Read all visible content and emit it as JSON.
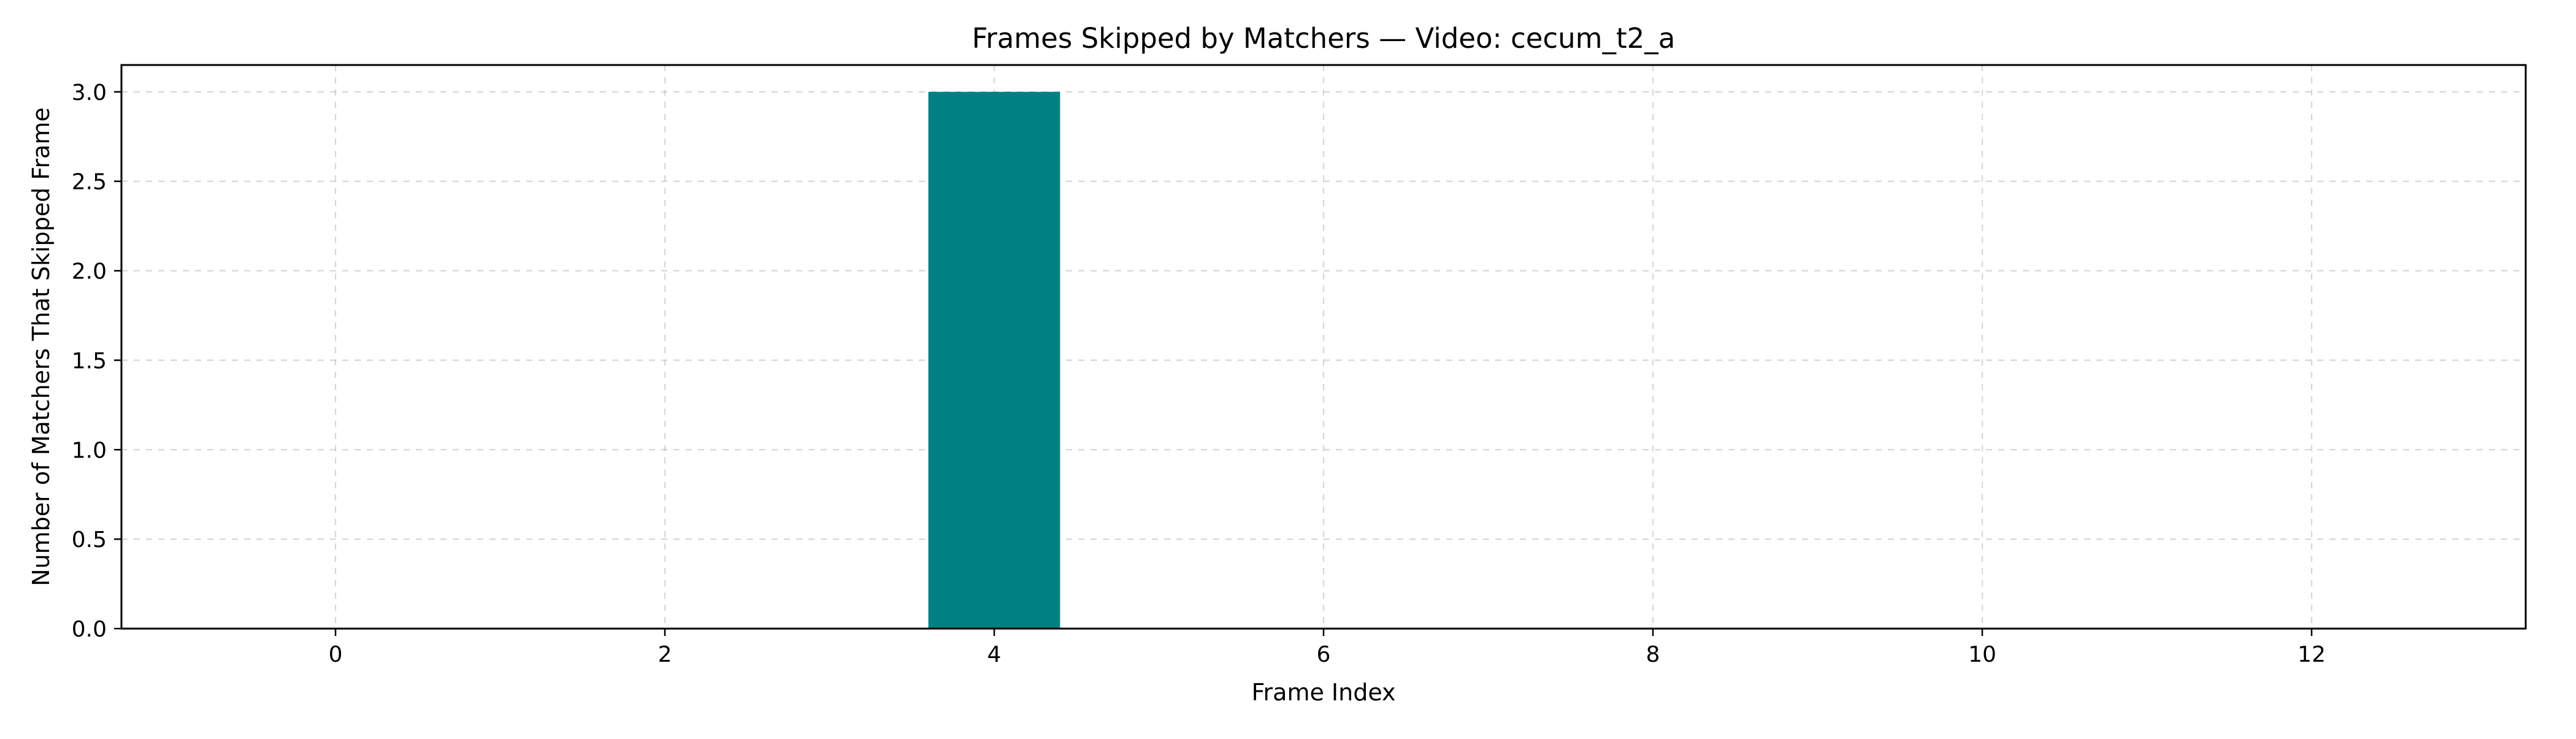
{
  "chart_data": {
    "type": "bar",
    "title": "Frames Skipped by Matchers — Video: cecum_t2_a",
    "xlabel": "Frame Index",
    "ylabel": "Number of Matchers That Skipped Frame",
    "x": [
      4
    ],
    "values": [
      3.0
    ],
    "bar_width": 0.8,
    "xlim": [
      -1.3,
      13.3
    ],
    "ylim": [
      0,
      3.15
    ],
    "xticks": [
      0,
      2,
      4,
      6,
      8,
      10,
      12
    ],
    "xtick_labels": [
      "0",
      "2",
      "4",
      "6",
      "8",
      "10",
      "12"
    ],
    "yticks": [
      0,
      0.5,
      1.0,
      1.5,
      2.0,
      2.5,
      3.0
    ],
    "ytick_labels": [
      "0.0",
      "0.5",
      "1.0",
      "1.5",
      "2.0",
      "2.5",
      "3.0"
    ],
    "grid": true,
    "grid_style": "dashed",
    "bar_color": "#008080"
  }
}
